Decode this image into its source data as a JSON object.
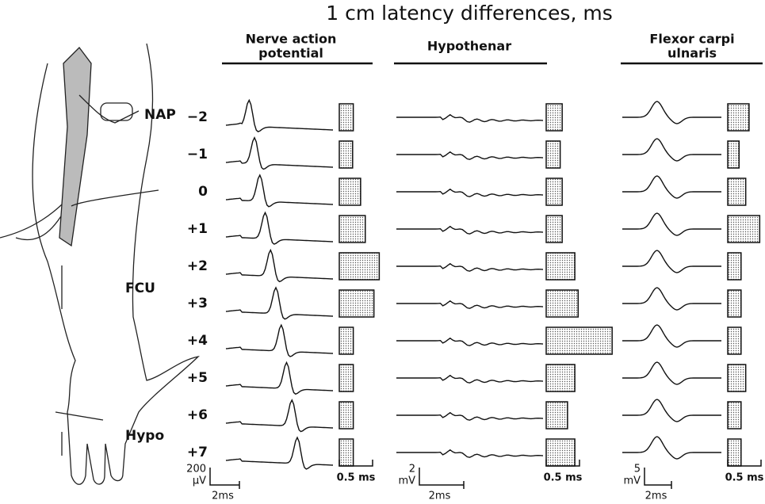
{
  "title": "1 cm latency differences, ms",
  "row_labels": [
    "−2",
    "−1",
    "0",
    "+1",
    "+2",
    "+3",
    "+4",
    "+5",
    "+6",
    "+7"
  ],
  "arm_labels": {
    "nap": "NAP",
    "fcu": "FCU",
    "hypo": "Hypo"
  },
  "columns": [
    {
      "title": [
        "Nerve action",
        "potential"
      ],
      "latency_ms": [
        0.21,
        0.2,
        0.32,
        0.39,
        0.6,
        0.52,
        0.21,
        0.21,
        0.21,
        0.21
      ],
      "scale_bar": {
        "value": 0.5,
        "label": "0.5 ms"
      },
      "amp_scale": [
        "200",
        "μV"
      ],
      "time_scale": "2ms"
    },
    {
      "title": [
        "Hypothenar"
      ],
      "latency_ms": [
        0.24,
        0.21,
        0.24,
        0.24,
        0.43,
        0.48,
        0.99,
        0.43,
        0.32,
        0.43
      ],
      "scale_bar": {
        "value": 0.5,
        "label": "0.5 ms"
      },
      "amp_scale": [
        "2",
        "mV"
      ],
      "time_scale": "2ms"
    },
    {
      "title": [
        "Flexor carpi",
        "ulnaris"
      ],
      "latency_ms": [
        0.32,
        0.17,
        0.27,
        0.48,
        0.2,
        0.2,
        0.2,
        0.27,
        0.2,
        0.2
      ],
      "scale_bar": {
        "value": 0.5,
        "label": "0.5 ms"
      },
      "amp_scale": [
        "5",
        "mV"
      ],
      "time_scale": "2ms"
    }
  ]
}
